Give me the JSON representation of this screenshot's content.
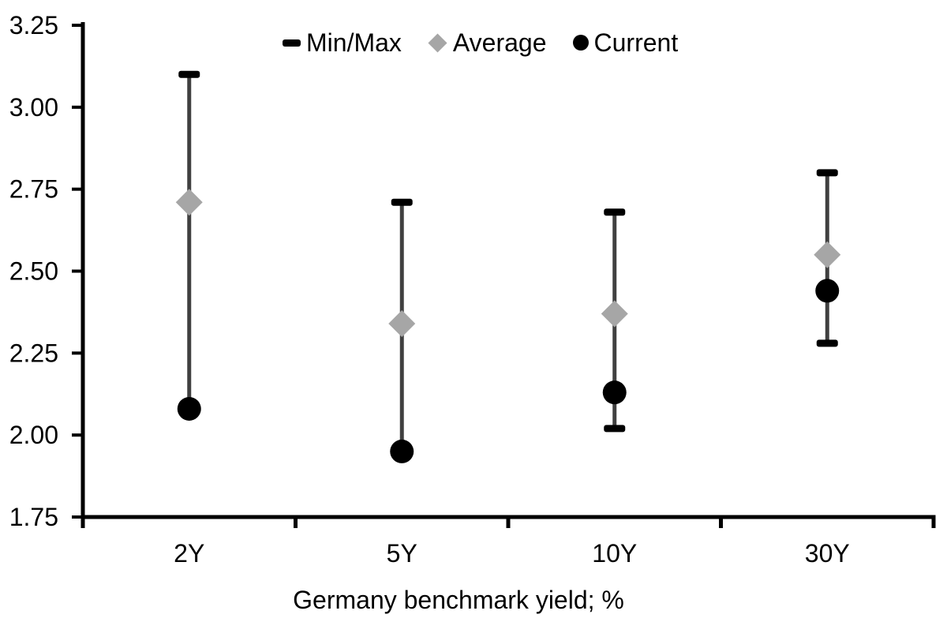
{
  "chart_data": {
    "type": "scatter",
    "subtype": "min-max-range-with-markers",
    "title": "",
    "xlabel": "Germany benchmark yield; %",
    "ylabel": "",
    "categories": [
      "2Y",
      "5Y",
      "10Y",
      "30Y"
    ],
    "series": [
      {
        "name": "Min/Max",
        "role": "range",
        "min": [
          2.08,
          1.95,
          2.02,
          2.28
        ],
        "max": [
          3.1,
          2.71,
          2.68,
          2.8
        ]
      },
      {
        "name": "Average",
        "role": "diamond",
        "values": [
          2.71,
          2.34,
          2.37,
          2.55
        ]
      },
      {
        "name": "Current",
        "role": "dot",
        "values": [
          2.08,
          1.95,
          2.13,
          2.44
        ]
      }
    ],
    "y_axis": {
      "min": 1.75,
      "max": 3.25,
      "step": 0.25,
      "tick_labels": [
        "3.25",
        "3.00",
        "2.75",
        "2.50",
        "2.25",
        "2.00",
        "1.75"
      ]
    },
    "legend": [
      {
        "label": "Min/Max",
        "marker": "dash"
      },
      {
        "label": "Average",
        "marker": "diamond"
      },
      {
        "label": "Current",
        "marker": "circle"
      }
    ],
    "legend_position": "top-center",
    "grid": false,
    "colors": {
      "range_cap": "#000000",
      "range_stem": "#404040",
      "average": "#a6a6a6",
      "current": "#000000",
      "axis": "#000000",
      "text": "#000000",
      "background": "#ffffff"
    }
  }
}
